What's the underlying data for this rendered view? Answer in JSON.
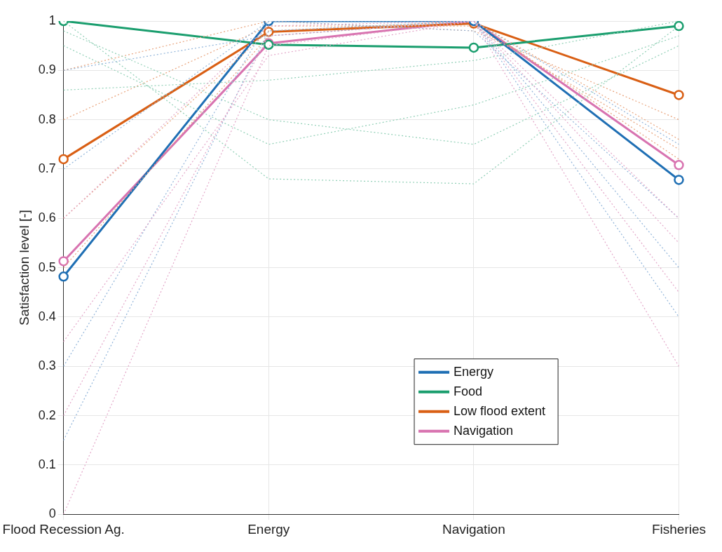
{
  "chart_data": {
    "type": "line",
    "ylabel": "Satisfaction level [-]",
    "categories": [
      "Flood Recession Ag.",
      "Energy",
      "Navigation",
      "Fisheries"
    ],
    "ylim": [
      0,
      1
    ],
    "yticks": [
      0,
      0.1,
      0.2,
      0.3,
      0.4,
      0.5,
      0.6,
      0.7,
      0.8,
      0.9,
      1
    ],
    "grid": true,
    "legend": "bottom right",
    "series": [
      {
        "color": "#e3a6c8",
        "line_style": "dotted",
        "marker": "none",
        "values": [
          0.0,
          0.95,
          1.0,
          0.3
        ]
      },
      {
        "color": "#e3a6c8",
        "line_style": "dotted",
        "marker": "none",
        "values": [
          0.2,
          0.97,
          1.0,
          0.45
        ]
      },
      {
        "color": "#e3a6c8",
        "line_style": "dotted",
        "marker": "none",
        "values": [
          0.35,
          0.93,
          1.0,
          0.6
        ]
      },
      {
        "color": "#e3a6c8",
        "line_style": "dotted",
        "marker": "none",
        "values": [
          0.6,
          0.99,
          1.0,
          0.55
        ]
      },
      {
        "color": "#8fb3d9",
        "line_style": "dotted",
        "marker": "none",
        "values": [
          0.3,
          1.0,
          1.0,
          0.5
        ]
      },
      {
        "color": "#8fb3d9",
        "line_style": "dotted",
        "marker": "none",
        "values": [
          0.15,
          0.98,
          1.0,
          0.4
        ]
      },
      {
        "color": "#8fb3d9",
        "line_style": "dotted",
        "marker": "none",
        "values": [
          0.7,
          1.0,
          0.98,
          0.6
        ]
      },
      {
        "color": "#8fb3d9",
        "line_style": "dotted",
        "marker": "none",
        "values": [
          0.9,
          0.97,
          1.0,
          0.75
        ]
      },
      {
        "color": "#8fcfb5",
        "line_style": "dotted",
        "marker": "none",
        "values": [
          1.0,
          0.68,
          0.67,
          0.99
        ]
      },
      {
        "color": "#8fcfb5",
        "line_style": "dotted",
        "marker": "none",
        "values": [
          0.95,
          0.75,
          0.83,
          0.97
        ]
      },
      {
        "color": "#8fcfb5",
        "line_style": "dotted",
        "marker": "none",
        "values": [
          0.86,
          0.88,
          0.92,
          1.0
        ]
      },
      {
        "color": "#8fcfb5",
        "line_style": "dotted",
        "marker": "none",
        "values": [
          0.98,
          0.8,
          0.75,
          0.95
        ]
      },
      {
        "color": "#e8a27a",
        "line_style": "dotted",
        "marker": "none",
        "values": [
          0.6,
          0.98,
          1.0,
          0.76
        ]
      },
      {
        "color": "#e8a27a",
        "line_style": "dotted",
        "marker": "none",
        "values": [
          0.8,
          0.99,
          0.99,
          0.74
        ]
      },
      {
        "color": "#e8a27a",
        "line_style": "dotted",
        "marker": "none",
        "values": [
          0.5,
          0.97,
          1.0,
          0.72
        ]
      },
      {
        "color": "#e8a27a",
        "line_style": "dotted",
        "marker": "none",
        "values": [
          0.9,
          1.0,
          0.98,
          0.8
        ]
      },
      {
        "name": "Energy",
        "color": "#1f6fb4",
        "line_style": "solid",
        "marker": "circle",
        "values": [
          0.482,
          1.0,
          1.0,
          0.678
        ]
      },
      {
        "name": "Food",
        "color": "#1a9e6e",
        "line_style": "solid",
        "marker": "circle",
        "values": [
          1.0,
          0.952,
          0.946,
          0.99
        ]
      },
      {
        "name": "Low flood extent",
        "color": "#d95f14",
        "line_style": "solid",
        "marker": "circle",
        "values": [
          0.72,
          0.978,
          0.995,
          0.85
        ]
      },
      {
        "name": "Navigation",
        "color": "#d873b0",
        "line_style": "solid",
        "marker": "circle",
        "values": [
          0.513,
          0.955,
          1.0,
          0.708
        ]
      }
    ]
  }
}
